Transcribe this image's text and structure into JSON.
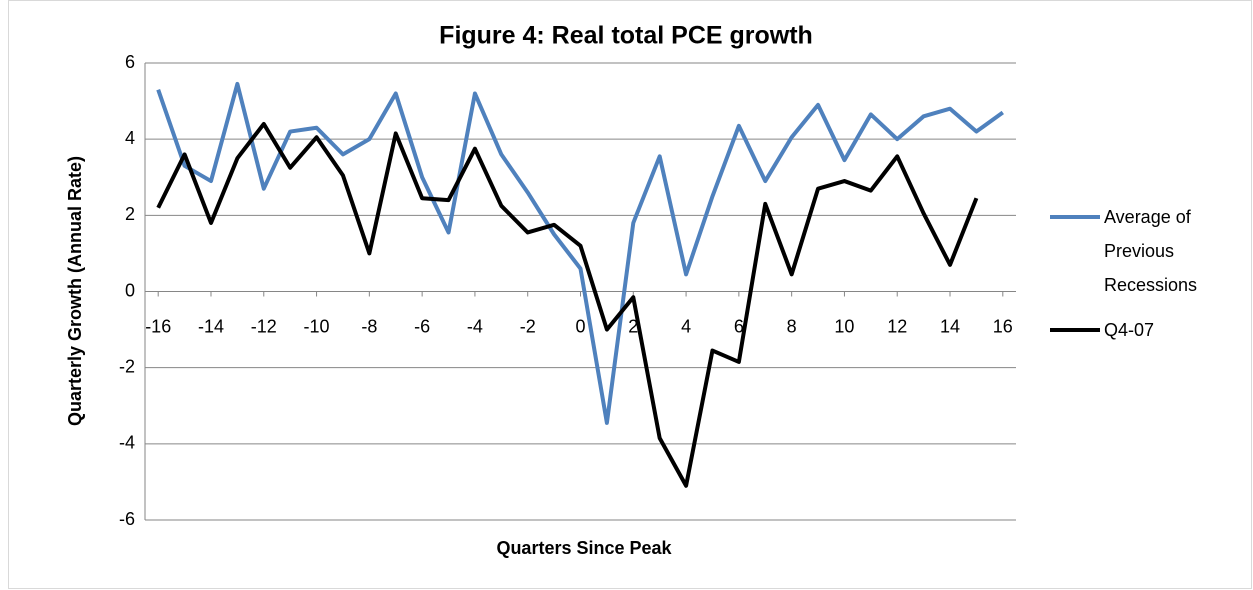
{
  "chart_data": {
    "type": "line",
    "title": "Figure 4: Real total PCE growth",
    "x_label": "Quarters Since Peak",
    "y_label": "Quarterly Growth (Annual Rate)",
    "x": [
      -16,
      -15,
      -14,
      -13,
      -12,
      -11,
      -10,
      -9,
      -8,
      -7,
      -6,
      -5,
      -4,
      -3,
      -2,
      -1,
      0,
      1,
      2,
      3,
      4,
      5,
      6,
      7,
      8,
      9,
      10,
      11,
      12,
      13,
      14,
      15,
      16
    ],
    "xlim": [
      -16.5,
      16.5
    ],
    "xticks": [
      -16,
      -14,
      -12,
      -10,
      -8,
      -6,
      -4,
      -2,
      0,
      2,
      4,
      6,
      8,
      10,
      12,
      14,
      16
    ],
    "ylim": [
      -6,
      6
    ],
    "yticks": [
      -6,
      -4,
      -2,
      0,
      2,
      4,
      6
    ],
    "grid": true,
    "legend": "right",
    "series": [
      {
        "name": "Average of Previous Recessions",
        "color": "#4f81bd",
        "values": [
          5.3,
          3.3,
          2.9,
          5.45,
          2.7,
          4.2,
          4.3,
          3.6,
          4.0,
          5.2,
          3.0,
          1.55,
          5.2,
          3.6,
          2.6,
          1.5,
          0.6,
          -3.45,
          1.8,
          3.55,
          0.45,
          2.5,
          4.35,
          2.9,
          4.05,
          4.9,
          3.45,
          4.65,
          4.0,
          4.6,
          4.8,
          4.2,
          4.7
        ]
      },
      {
        "name": "Q4-07",
        "color": "#000000",
        "values": [
          2.2,
          3.6,
          1.8,
          3.5,
          4.4,
          3.25,
          4.05,
          3.05,
          1.0,
          4.15,
          2.45,
          2.4,
          3.75,
          2.25,
          1.55,
          1.75,
          1.2,
          -1.0,
          -0.15,
          -3.85,
          -5.1,
          -1.55,
          -1.85,
          2.3,
          0.45,
          2.7,
          2.9,
          2.65,
          3.55,
          2.05,
          0.7,
          2.45,
          null
        ]
      }
    ]
  }
}
